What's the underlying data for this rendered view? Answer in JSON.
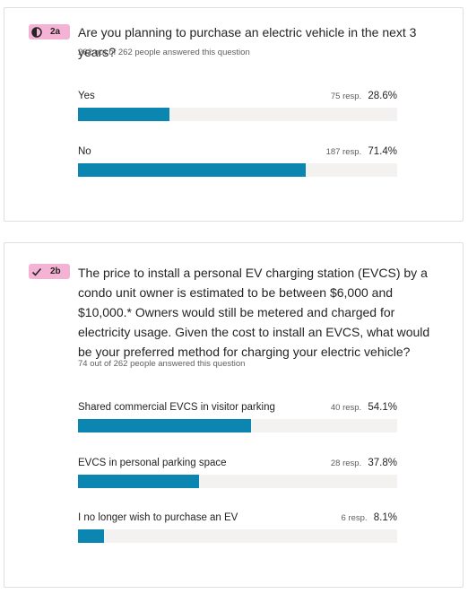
{
  "colors": {
    "accent": "#0a86b0",
    "badge": "#f4b3d5",
    "track": "#f3f2f1"
  },
  "q2a": {
    "badge_icon": "half-circle-icon",
    "badge_num": "2a",
    "question": "Are you planning to purchase an electric vehicle in the next 3 years?",
    "answered": "262 out of 262 people answered this question",
    "options": [
      {
        "label": "Yes",
        "resp": "75 resp.",
        "pct": "28.6%",
        "fraction": 0.286
      },
      {
        "label": "No",
        "resp": "187 resp.",
        "pct": "71.4%",
        "fraction": 0.714
      }
    ]
  },
  "q2b": {
    "badge_icon": "checkmark-icon",
    "badge_num": "2b",
    "question": "The price to install a personal EV charging station (EVCS) by a condo unit owner is estimated to be between $6,000 and $10,000.* Owners would still be metered and charged for electricity usage. Given the cost to install an EVCS, what would be your preferred method for charging your electric vehicle?",
    "answered": "74 out of 262 people answered this question",
    "options": [
      {
        "label": "Shared commercial EVCS in visitor parking",
        "resp": "40 resp.",
        "pct": "54.1%",
        "fraction": 0.541
      },
      {
        "label": "EVCS in personal parking space",
        "resp": "28 resp.",
        "pct": "37.8%",
        "fraction": 0.378
      },
      {
        "label": "I no longer wish to purchase an EV",
        "resp": "6 resp.",
        "pct": "8.1%",
        "fraction": 0.081
      }
    ]
  }
}
